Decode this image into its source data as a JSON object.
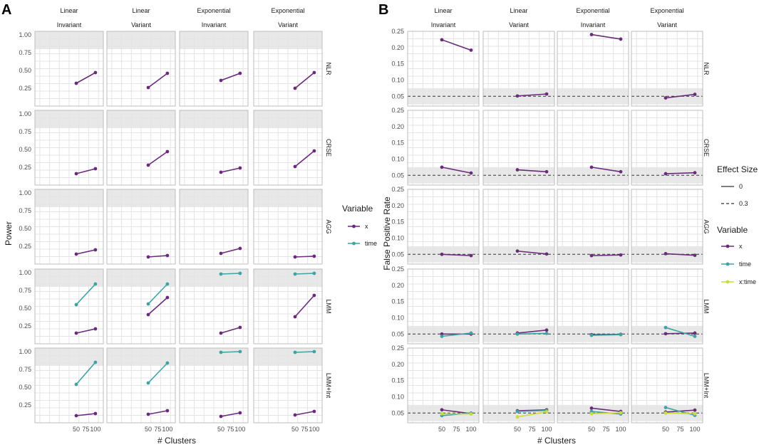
{
  "colors": {
    "x": "#6a2c7a",
    "time": "#3fa2a5",
    "x:time": "#c8dd3a",
    "band": "#e8e8e8",
    "dash": "#333333"
  },
  "chart_data": [
    {
      "tag": "A",
      "type": "line",
      "xlabel": "# Clusters",
      "ylabel": "Power",
      "x": [
        50,
        100
      ],
      "xticks": [
        "50",
        "75",
        "100"
      ],
      "ylim": [
        0,
        1.05
      ],
      "yticks": [
        "0.25",
        "0.50",
        "0.75",
        "1.00"
      ],
      "shade": [
        0.8,
        1.05
      ],
      "columns": [
        {
          "top": "Linear",
          "bottom": "Invariant"
        },
        {
          "top": "Linear",
          "bottom": "Variant"
        },
        {
          "top": "Exponential",
          "bottom": "Invariant"
        },
        {
          "top": "Exponential",
          "bottom": "Variant"
        }
      ],
      "rows": [
        "NLR",
        "CRSE",
        "AGG",
        "LMM",
        "LMM+Int"
      ],
      "panels": [
        [
          {
            "x": [
              0.32,
              0.47
            ]
          },
          {
            "x": [
              0.26,
              0.46
            ]
          },
          {
            "x": [
              0.36,
              0.46
            ]
          },
          {
            "x": [
              0.25,
              0.47
            ]
          }
        ],
        [
          {
            "x": [
              0.16,
              0.23
            ]
          },
          {
            "x": [
              0.28,
              0.47
            ]
          },
          {
            "x": [
              0.18,
              0.24
            ]
          },
          {
            "x": [
              0.26,
              0.48
            ]
          }
        ],
        [
          {
            "x": [
              0.14,
              0.2
            ]
          },
          {
            "x": [
              0.1,
              0.12
            ]
          },
          {
            "x": [
              0.15,
              0.22
            ]
          },
          {
            "x": [
              0.1,
              0.11
            ]
          }
        ],
        [
          {
            "x": [
              0.15,
              0.21
            ],
            "time": [
              0.55,
              0.84
            ]
          },
          {
            "x": [
              0.41,
              0.65
            ],
            "time": [
              0.56,
              0.84
            ]
          },
          {
            "x": [
              0.15,
              0.23
            ],
            "time": [
              0.98,
              0.99
            ]
          },
          {
            "x": [
              0.38,
              0.68
            ],
            "time": [
              0.98,
              0.99
            ]
          }
        ],
        [
          {
            "x": [
              0.1,
              0.13
            ],
            "time": [
              0.54,
              0.85
            ]
          },
          {
            "x": [
              0.12,
              0.17
            ],
            "time": [
              0.56,
              0.84
            ]
          },
          {
            "x": [
              0.09,
              0.14
            ],
            "time": [
              0.99,
              1.0
            ]
          },
          {
            "x": [
              0.11,
              0.16
            ],
            "time": [
              0.99,
              1.0
            ]
          }
        ]
      ]
    },
    {
      "tag": "B",
      "type": "line",
      "xlabel": "# Clusters",
      "ylabel": "False Positive Rate",
      "x": [
        50,
        100
      ],
      "xticks": [
        "50",
        "75",
        "100"
      ],
      "ylim": [
        0.02,
        0.25
      ],
      "yticks": [
        "0.05",
        "0.10",
        "0.15",
        "0.20",
        "0.25"
      ],
      "shade": [
        0.025,
        0.075
      ],
      "reference": 0.05,
      "columns": [
        {
          "top": "Linear",
          "bottom": "Invariant"
        },
        {
          "top": "Linear",
          "bottom": "Variant"
        },
        {
          "top": "Exponential",
          "bottom": "Invariant"
        },
        {
          "top": "Exponential",
          "bottom": "Variant"
        }
      ],
      "rows": [
        "NLR",
        "CRSE",
        "AGG",
        "LMM",
        "LMM+Int"
      ],
      "panels": [
        [
          {
            "x": [
              0.224,
              0.192
            ]
          },
          {
            "x": [
              0.051,
              0.057
            ]
          },
          {
            "x": [
              0.24,
              0.226
            ]
          },
          {
            "x": [
              0.045,
              0.056
            ]
          }
        ],
        [
          {
            "x": [
              0.075,
              0.057
            ]
          },
          {
            "x": [
              0.067,
              0.061
            ]
          },
          {
            "x": [
              0.075,
              0.061
            ]
          },
          {
            "x": [
              0.055,
              0.058
            ]
          }
        ],
        [
          {
            "x": [
              0.05,
              0.046
            ]
          },
          {
            "x": [
              0.06,
              0.051
            ]
          },
          {
            "x": [
              0.046,
              0.048
            ]
          },
          {
            "x": [
              0.052,
              0.047
            ]
          }
        ],
        [
          {
            "x": [
              0.05,
              0.05
            ],
            "time": [
              0.043,
              0.053
            ]
          },
          {
            "x": [
              0.053,
              0.062
            ],
            "time": [
              0.05,
              0.052
            ]
          },
          {
            "x": [
              0.048,
              0.049
            ],
            "time": [
              0.046,
              0.048
            ]
          },
          {
            "x": [
              0.051,
              0.053
            ],
            "time": [
              0.07,
              0.043
            ]
          }
        ],
        [
          {
            "x": [
              0.06,
              0.048
            ],
            "time": [
              0.042,
              0.05
            ],
            "x:time": [
              0.048,
              0.047
            ]
          },
          {
            "x": [
              0.057,
              0.06
            ],
            "time": [
              0.055,
              0.058
            ],
            "x:time": [
              0.038,
              0.054
            ]
          },
          {
            "x": [
              0.065,
              0.055
            ],
            "time": [
              0.055,
              0.047
            ],
            "x:time": [
              0.048,
              0.051
            ]
          },
          {
            "x": [
              0.053,
              0.059
            ],
            "time": [
              0.067,
              0.043
            ],
            "x:time": [
              0.05,
              0.048
            ]
          }
        ]
      ]
    }
  ],
  "legend_a": {
    "title": "Variable",
    "items": [
      {
        "key": "x",
        "label": "x"
      },
      {
        "key": "time",
        "label": "time"
      }
    ]
  },
  "legend_b_effect": {
    "title": "Effect Size",
    "items": [
      {
        "label": "0",
        "style": "solid"
      },
      {
        "label": "0.3",
        "style": "dashed"
      }
    ]
  },
  "legend_b_var": {
    "title": "Variable",
    "items": [
      {
        "key": "x",
        "label": "x"
      },
      {
        "key": "time",
        "label": "time"
      },
      {
        "key": "x:time",
        "label": "x:time"
      }
    ]
  }
}
